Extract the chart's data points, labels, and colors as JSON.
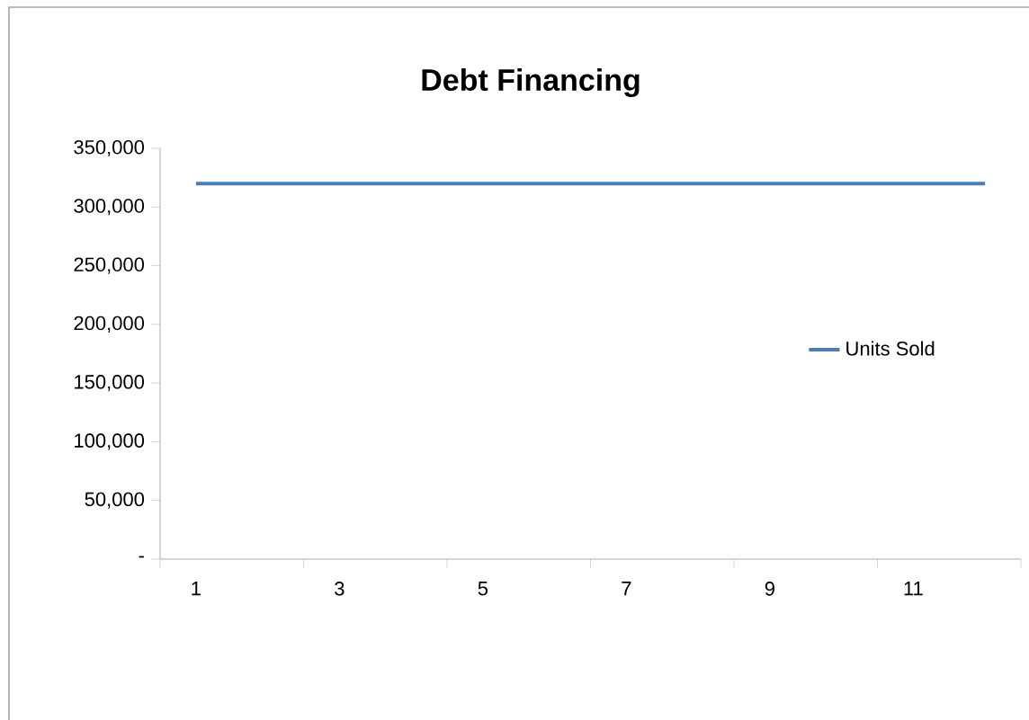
{
  "chart_data": {
    "type": "line",
    "title": "Debt Financing",
    "categories": [
      "1",
      null,
      "3",
      null,
      "5",
      null,
      "7",
      null,
      "9",
      null,
      "11",
      null
    ],
    "series": [
      {
        "name": "Units Sold",
        "color": "#4a7ebb",
        "values": [
          320000,
          320000,
          320000,
          320000,
          320000,
          320000,
          320000,
          320000,
          320000,
          320000,
          320000,
          320000
        ]
      }
    ],
    "ylim": [
      0,
      350000
    ],
    "yticks": [
      {
        "value": 0,
        "label": "-"
      },
      {
        "value": 50000,
        "label": "50,000"
      },
      {
        "value": 100000,
        "label": "100,000"
      },
      {
        "value": 150000,
        "label": "150,000"
      },
      {
        "value": 200000,
        "label": "200,000"
      },
      {
        "value": 250000,
        "label": "250,000"
      },
      {
        "value": 300000,
        "label": "300,000"
      },
      {
        "value": 350000,
        "label": "350,000"
      }
    ],
    "legend": "right",
    "grid": false,
    "marker": "none",
    "line_style": "solid"
  }
}
